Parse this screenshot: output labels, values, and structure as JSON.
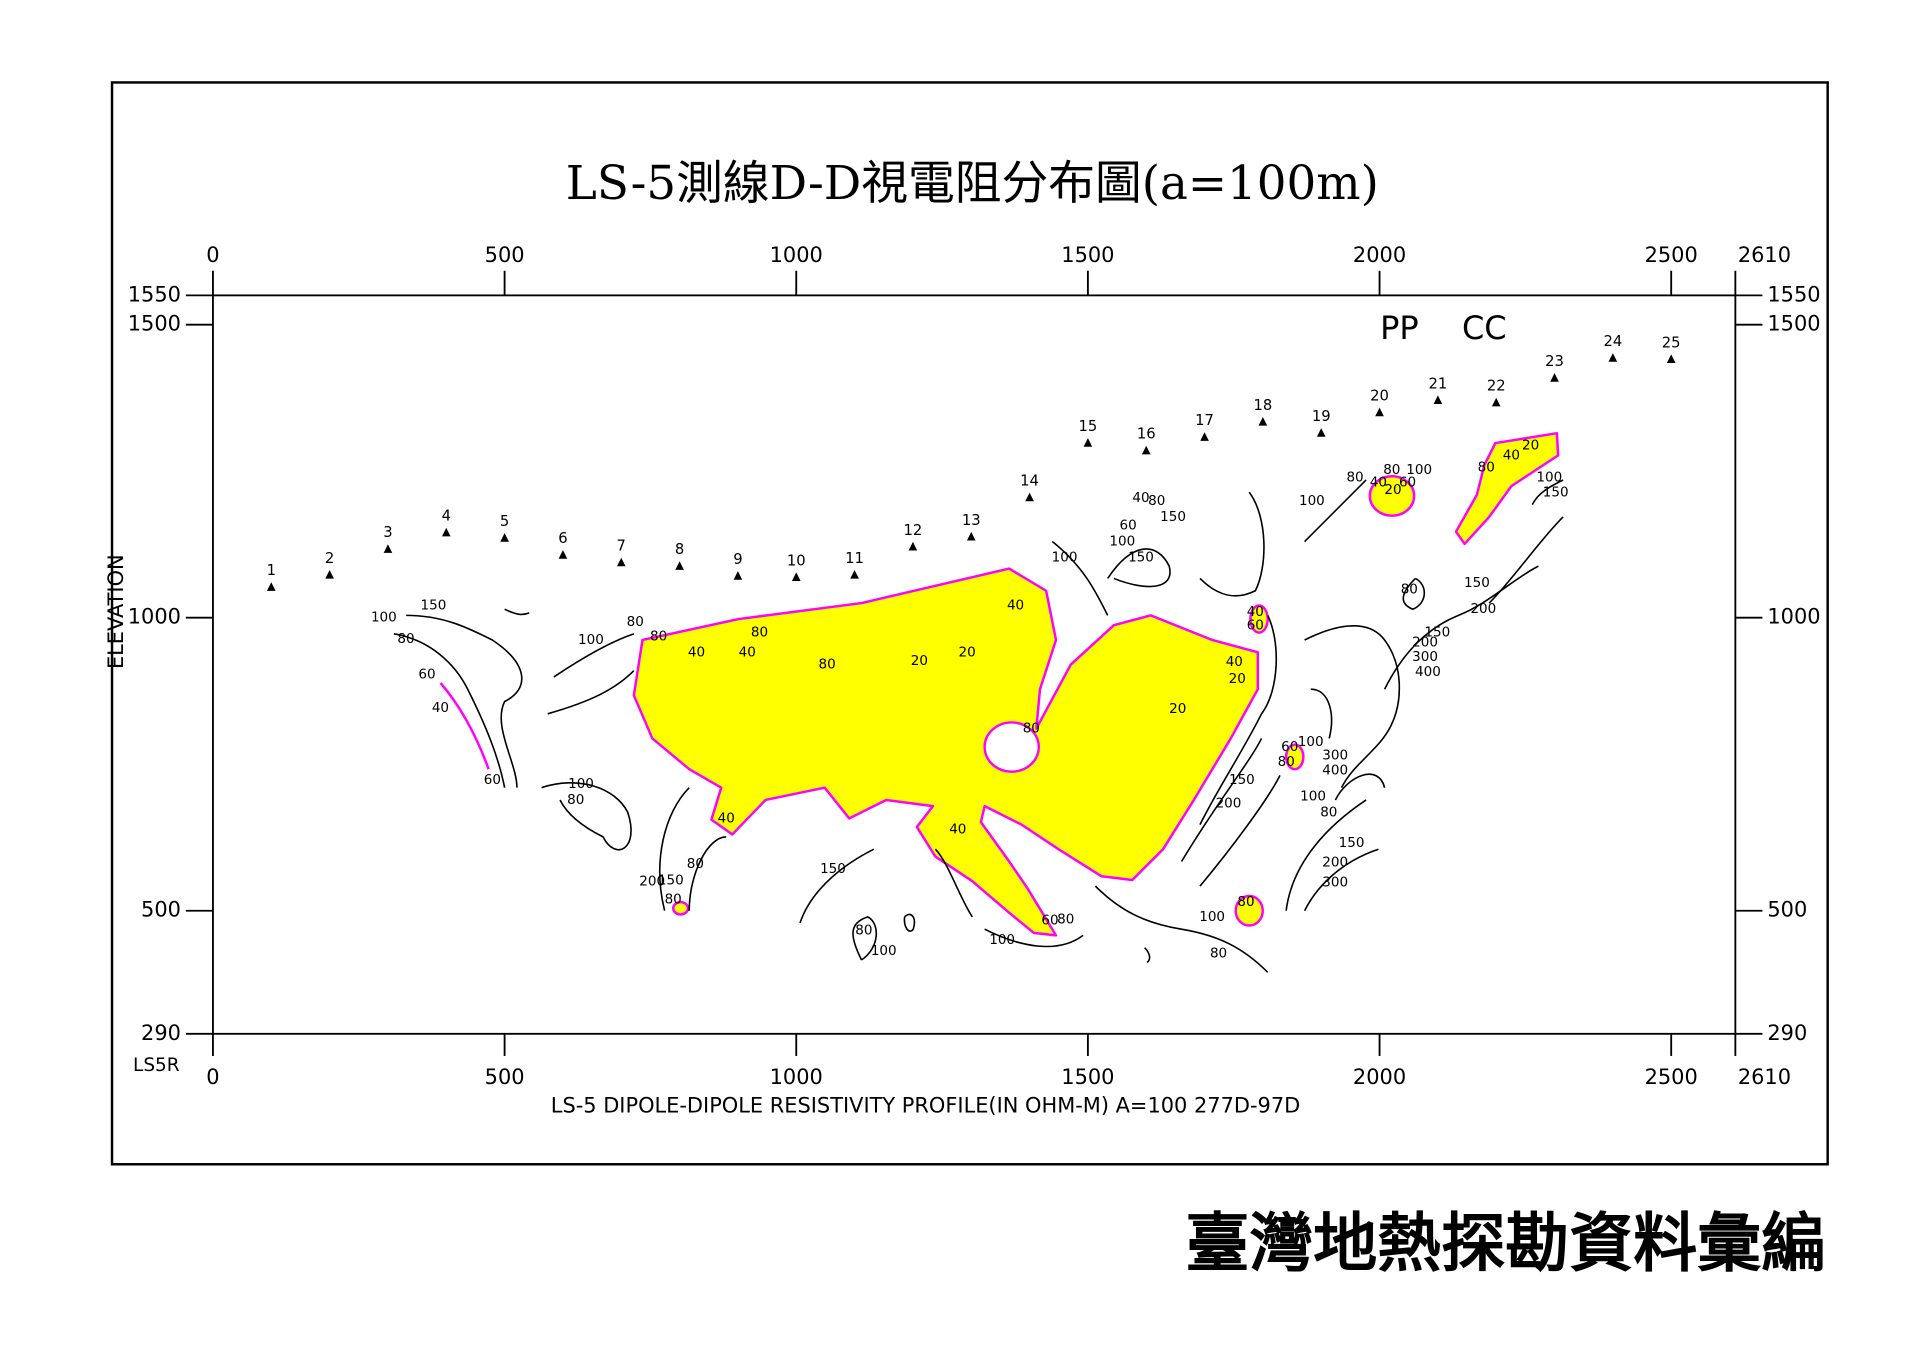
{
  "chart_data": {
    "type": "contour",
    "title": "LS-5測線D-D視電阻分布圖(a=100m)",
    "subtitle": "LS-5  DIPOLE-DIPOLE  RESISTIVITY PROFILE(IN  OHM-M)  A=100  277D-97D",
    "ylabel": "ELEVATION",
    "corner_label": "LS5R",
    "annotations": [
      "PP",
      "CC"
    ],
    "xlim": [
      0,
      2610
    ],
    "ylim": [
      290,
      1550
    ],
    "xticks": [
      0,
      500,
      1000,
      1500,
      2000,
      2500,
      2610
    ],
    "yticks": [
      290,
      500,
      1000,
      1500,
      1550
    ],
    "fill_color": "#ffff00",
    "boundary_color": "#ff00ff",
    "line_color": "#000000",
    "stations": {
      "labels": [
        "1",
        "2",
        "3",
        "4",
        "5",
        "6",
        "7",
        "8",
        "9",
        "10",
        "11",
        "12",
        "13",
        "14",
        "15",
        "16",
        "17",
        "18",
        "19",
        "20",
        "21",
        "22",
        "23",
        "24",
        "25"
      ],
      "x": [
        100,
        200,
        300,
        400,
        500,
        600,
        700,
        800,
        900,
        1000,
        1100,
        1200,
        1300,
        1400,
        1500,
        1600,
        1700,
        1800,
        1900,
        2000,
        2100,
        2200,
        2300,
        2400,
        2500
      ],
      "elevation": [
        1052,
        1073,
        1117,
        1145,
        1136,
        1107,
        1094,
        1088,
        1071,
        1069,
        1073,
        1121,
        1138,
        1205,
        1298,
        1285,
        1308,
        1334,
        1315,
        1350,
        1371,
        1367,
        1409,
        1443,
        1441
      ]
    },
    "contour_labels": {
      "labels": [
        "150",
        "100",
        "80",
        "60",
        "40",
        "60",
        "100",
        "80",
        "80",
        "40",
        "80",
        "40",
        "80",
        "20",
        "20",
        "40",
        "80",
        "20",
        "40",
        "20",
        "60",
        "40",
        "100",
        "150",
        "100",
        "60",
        "40",
        "80",
        "150",
        "100",
        "80",
        "80",
        "100",
        "40",
        "20",
        "60",
        "80",
        "40",
        "20",
        "100",
        "150",
        "80",
        "150",
        "200",
        "150",
        "200",
        "300",
        "400",
        "60",
        "80",
        "100",
        "300",
        "400",
        "100",
        "80",
        "150",
        "200",
        "150",
        "200",
        "300",
        "100",
        "80",
        "40",
        "40",
        "150",
        "200",
        "150",
        "80",
        "80",
        "60",
        "80",
        "100",
        "80",
        "100",
        "100",
        "80",
        "80"
      ],
      "x": [
        378,
        293,
        331,
        367,
        390,
        479,
        648,
        724,
        764,
        829,
        937,
        916,
        1053,
        1211,
        1293,
        1376,
        1403,
        1654,
        1751,
        1756,
        1787,
        1787,
        1460,
        1591,
        1559,
        1569,
        1591,
        1618,
        1646,
        1884,
        1958,
        2021,
        2068,
        1998,
        2023,
        2048,
        2183,
        2226,
        2259,
        2291,
        2302,
        2051,
        2167,
        2178,
        2099,
        2078,
        2078,
        2083,
        1846,
        1840,
        1882,
        1924,
        1924,
        1886,
        1913,
        1764,
        1741,
        1952,
        1924,
        1924,
        631,
        622,
        880,
        1277,
        1063,
        753,
        785,
        827,
        789,
        1435,
        1462,
        1353,
        1116,
        1150,
        1713,
        1724,
        1771
      ],
      "y": [
        1021,
        1000,
        964,
        903,
        846,
        723,
        962,
        993,
        968,
        941,
        975,
        941,
        920,
        926,
        941,
        1021,
        811,
        844,
        924,
        895,
        987,
        1010,
        1103,
        1103,
        1130,
        1157,
        1204,
        1199,
        1172,
        1199,
        1239,
        1252,
        1252,
        1231,
        1218,
        1231,
        1256,
        1277,
        1294,
        1239,
        1214,
        1048,
        1059,
        1015,
        975,
        958,
        933,
        907,
        779,
        754,
        788,
        765,
        739,
        695,
        668,
        723,
        683,
        616,
        582,
        548,
        716,
        689,
        657,
        639,
        571,
        550,
        552,
        580,
        519,
        483,
        485,
        450,
        466,
        431,
        489,
        427,
        515
      ]
    }
  },
  "footer": "臺灣地熱探勘資料彙編"
}
